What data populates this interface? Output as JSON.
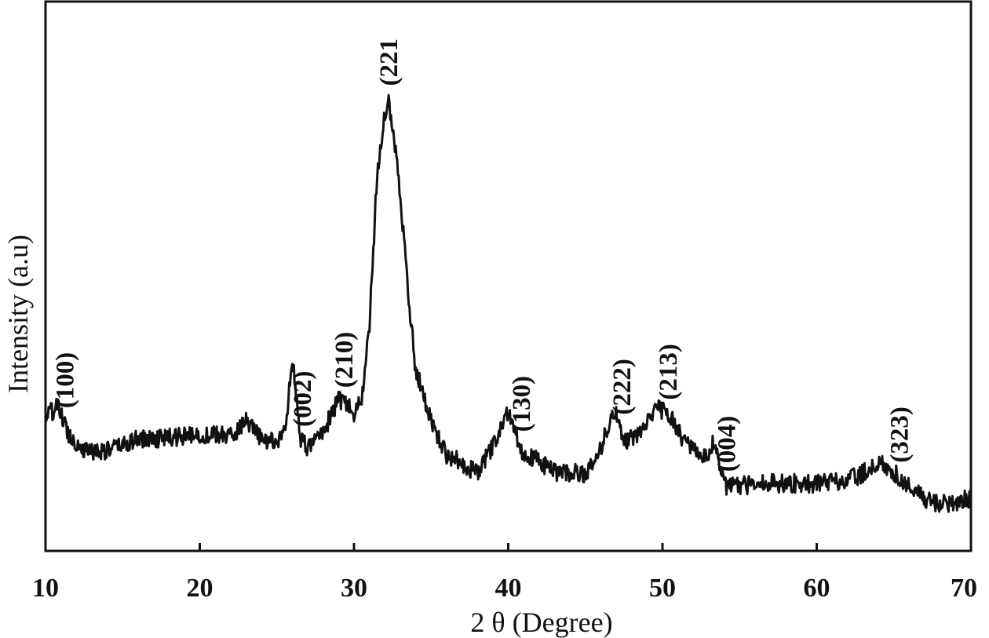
{
  "chart_data": {
    "type": "line",
    "title": "",
    "xlabel": "2 θ (Degree)",
    "ylabel": "Intensity (a.u)",
    "xlim": [
      10,
      70
    ],
    "ylim": [
      0,
      100
    ],
    "xticks": [
      10,
      20,
      30,
      40,
      50,
      60,
      70
    ],
    "grid": false,
    "legend": "none",
    "line_color": "#111111",
    "series": [
      {
        "x": [
          10,
          10.8,
          11.5,
          12.5,
          14,
          16,
          18,
          20,
          22,
          23,
          24,
          25,
          25.6,
          26,
          26.2,
          26.5,
          27,
          28,
          29,
          29.5,
          30,
          30.5,
          31,
          31.5,
          32,
          32.2,
          32.5,
          33,
          33.5,
          34,
          35,
          36,
          37,
          38,
          39,
          40,
          41,
          42,
          43,
          44,
          45,
          46,
          46.5,
          47,
          47.5,
          48,
          49,
          49.7,
          50.5,
          51,
          52,
          53,
          53.3,
          54,
          55,
          56,
          58,
          60,
          62,
          63,
          64.3,
          65,
          66,
          67,
          68,
          69,
          70
        ],
        "y": [
          21.5,
          23.3,
          18,
          14.8,
          14.8,
          17,
          17.3,
          17.8,
          17.8,
          20.3,
          17,
          16.5,
          19.3,
          33.3,
          27,
          17,
          15.3,
          18.5,
          24.5,
          24,
          21.5,
          25,
          38.5,
          68.5,
          80,
          82.5,
          78,
          64.5,
          46,
          30.5,
          20.5,
          14,
          12.5,
          10.5,
          15.5,
          22.5,
          14,
          12.8,
          10.5,
          10.5,
          10.5,
          15,
          20,
          22,
          17,
          17,
          20,
          23,
          21.5,
          18.5,
          14.5,
          13.6,
          16.6,
          8,
          7.9,
          8.5,
          8.5,
          8.5,
          9,
          10.5,
          12.5,
          10.5,
          8,
          5.5,
          4.5,
          5,
          5.5
        ],
        "noise_amplitude": 1.8
      }
    ],
    "annotations": [
      {
        "text": "(100)",
        "x": 11.2
      },
      {
        "text": "(002)",
        "x": 26.6
      },
      {
        "text": "(210)",
        "x": 29.3
      },
      {
        "text": "(221",
        "x": 32.2
      },
      {
        "text": "(130)",
        "x": 40.8
      },
      {
        "text": "(222)",
        "x": 47.3
      },
      {
        "text": "(213)",
        "x": 50.3
      },
      {
        "text": "(004)",
        "x": 54.1
      },
      {
        "text": "(323)",
        "x": 65.3
      }
    ]
  }
}
